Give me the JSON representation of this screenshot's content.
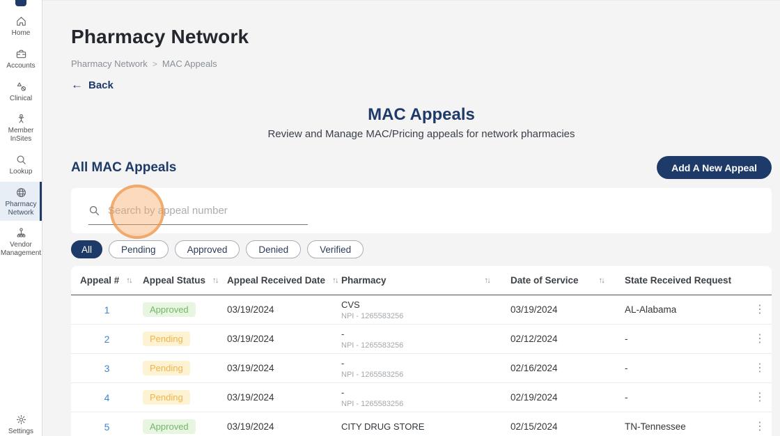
{
  "sidebar": {
    "items": [
      {
        "label": "Home",
        "icon": "home-icon",
        "active": false
      },
      {
        "label": "Accounts",
        "icon": "accounts-icon",
        "active": false
      },
      {
        "label": "Clinical",
        "icon": "clinical-icon",
        "active": false
      },
      {
        "label": "Member InSites",
        "icon": "member-insites-icon",
        "active": false
      },
      {
        "label": "Lookup",
        "icon": "lookup-icon",
        "active": false
      },
      {
        "label": "Pharmacy Network",
        "icon": "pharmacy-network-icon",
        "active": true
      },
      {
        "label": "Vendor Management",
        "icon": "vendor-management-icon",
        "active": false
      }
    ],
    "settings": {
      "label": "Settings",
      "icon": "settings-icon"
    }
  },
  "page": {
    "title": "Pharmacy Network",
    "breadcrumb": {
      "items": [
        "Pharmacy Network",
        "MAC Appeals"
      ],
      "separator": ">"
    },
    "back_label": "Back"
  },
  "hero": {
    "title": "MAC Appeals",
    "subtitle": "Review and Manage MAC/Pricing appeals for network pharmacies"
  },
  "section": {
    "title": "All MAC Appeals",
    "add_button_label": "Add A New Appeal"
  },
  "search": {
    "placeholder": "Search by appeal number",
    "value": ""
  },
  "filters": [
    {
      "label": "All",
      "active": true
    },
    {
      "label": "Pending",
      "active": false
    },
    {
      "label": "Approved",
      "active": false
    },
    {
      "label": "Denied",
      "active": false
    },
    {
      "label": "Verified",
      "active": false
    }
  ],
  "table": {
    "columns": [
      {
        "label": "Appeal #",
        "sortable": true
      },
      {
        "label": "Appeal Status",
        "sortable": true
      },
      {
        "label": "Appeal Received Date",
        "sortable": true
      },
      {
        "label": "Pharmacy",
        "sortable": true
      },
      {
        "label": "Date of Service",
        "sortable": true
      },
      {
        "label": "State Received Request",
        "sortable": false
      }
    ],
    "rows": [
      {
        "appeal_number": "1",
        "status": "Approved",
        "received_date": "03/19/2024",
        "pharmacy": "CVS",
        "npi": "NPI - 1265583256",
        "date_of_service": "03/19/2024",
        "state": "AL-Alabama"
      },
      {
        "appeal_number": "2",
        "status": "Pending",
        "received_date": "03/19/2024",
        "pharmacy": "-",
        "npi": "NPI - 1265583256",
        "date_of_service": "02/12/2024",
        "state": "-"
      },
      {
        "appeal_number": "3",
        "status": "Pending",
        "received_date": "03/19/2024",
        "pharmacy": "-",
        "npi": "NPI - 1265583256",
        "date_of_service": "02/16/2024",
        "state": "-"
      },
      {
        "appeal_number": "4",
        "status": "Pending",
        "received_date": "03/19/2024",
        "pharmacy": "-",
        "npi": "NPI - 1265583256",
        "date_of_service": "02/19/2024",
        "state": "-"
      },
      {
        "appeal_number": "5",
        "status": "Approved",
        "received_date": "03/19/2024",
        "pharmacy": "CITY DRUG STORE",
        "npi": "",
        "date_of_service": "02/15/2024",
        "state": "TN-Tennessee"
      }
    ]
  },
  "colors": {
    "accent_navy": "#1d3a68",
    "link_blue": "#3d87c9",
    "approved_bg": "#e7f5e1",
    "approved_text": "#71b867",
    "pending_bg": "#fdf2d2",
    "pending_text": "#eeb54e",
    "click_indicator": "#f0964b"
  }
}
